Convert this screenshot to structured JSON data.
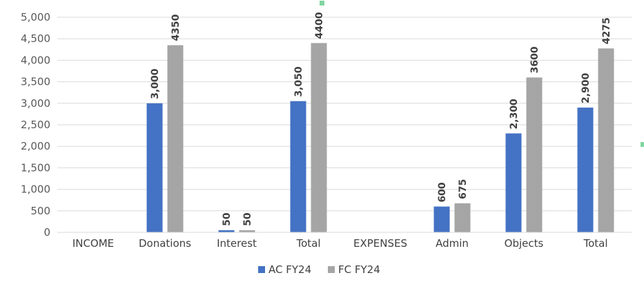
{
  "chart_data": {
    "type": "bar",
    "categories": [
      "INCOME",
      "Donations",
      "Interest",
      "Total",
      "EXPENSES",
      "Admin",
      "Objects",
      "Total"
    ],
    "series": [
      {
        "name": "AC FY24",
        "color": "#4472c4",
        "values": [
          null,
          3000,
          50,
          3050,
          null,
          600,
          2300,
          2900
        ],
        "labels": [
          "",
          "3,000",
          "50",
          "3,050",
          "",
          "600",
          "2,300",
          "2,900"
        ]
      },
      {
        "name": "FC FY24",
        "color": "#a5a5a5",
        "values": [
          null,
          4350,
          50,
          4400,
          null,
          675,
          3600,
          4275
        ],
        "labels": [
          "",
          "4350",
          "50",
          "4400",
          "",
          "675",
          "3600",
          "4275"
        ]
      }
    ],
    "ylim": [
      0,
      5000
    ],
    "yticks": [
      "0",
      "500",
      "1,000",
      "1,500",
      "2,000",
      "2,500",
      "3,000",
      "3,500",
      "4,000",
      "4,500",
      "5,000"
    ],
    "grid": true,
    "legend_position": "bottom",
    "title": "",
    "xlabel": "",
    "ylabel": ""
  }
}
